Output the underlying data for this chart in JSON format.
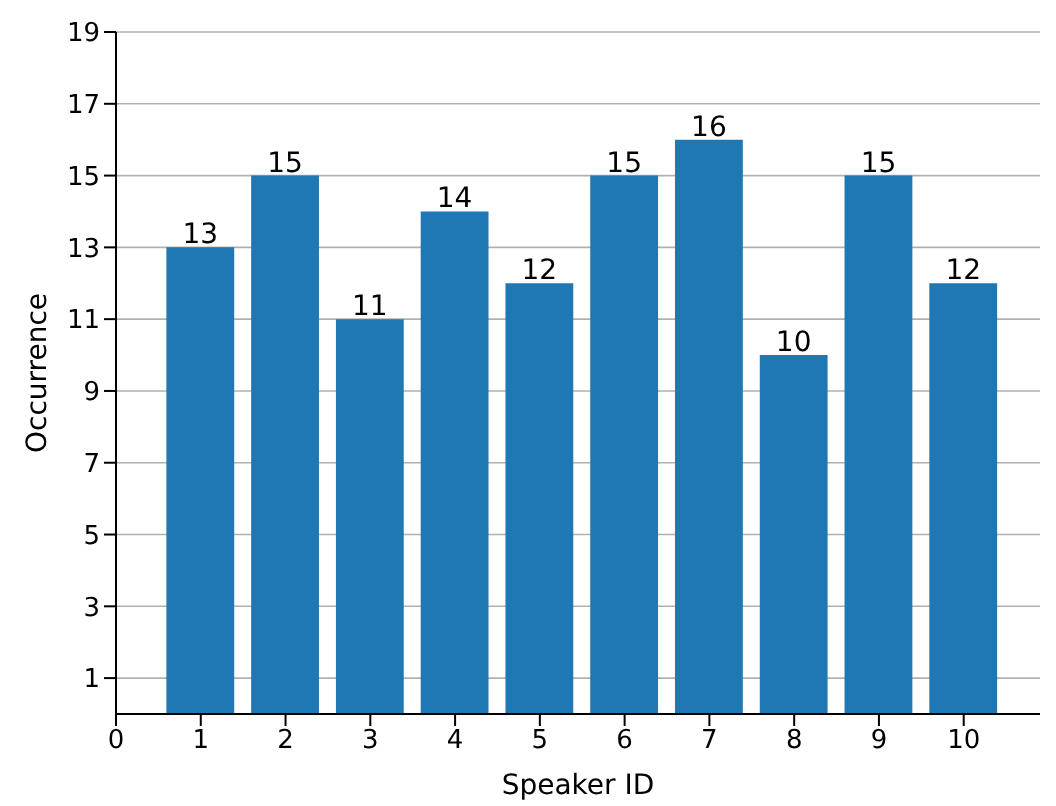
{
  "chart_data": {
    "type": "bar",
    "xlabel": "Speaker ID",
    "ylabel": "Occurrence",
    "x": [
      1,
      2,
      3,
      4,
      5,
      6,
      7,
      8,
      9,
      10
    ],
    "values": [
      13,
      15,
      11,
      14,
      12,
      15,
      16,
      10,
      15,
      12
    ],
    "color": "#1f77b4",
    "xlim": [
      0,
      10.9
    ],
    "xticks": [
      0,
      1,
      2,
      3,
      4,
      5,
      6,
      7,
      8,
      9,
      10
    ],
    "ylim": [
      0,
      19
    ],
    "yticks": [
      1,
      3,
      5,
      7,
      9,
      11,
      13,
      15,
      17,
      19
    ],
    "grid": "y",
    "data_labels": true
  }
}
